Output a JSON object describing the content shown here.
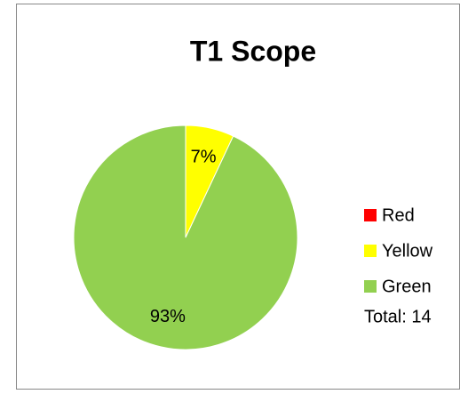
{
  "chart_data": {
    "type": "pie",
    "title": "T1 Scope",
    "categories": [
      "Red",
      "Yellow",
      "Green"
    ],
    "values": [
      0,
      7,
      93
    ],
    "value_labels": [
      null,
      "7%",
      "93%"
    ],
    "colors": [
      "#ff0000",
      "#ffff00",
      "#92d050"
    ],
    "annotation": "Total: 14",
    "legend": "right"
  }
}
